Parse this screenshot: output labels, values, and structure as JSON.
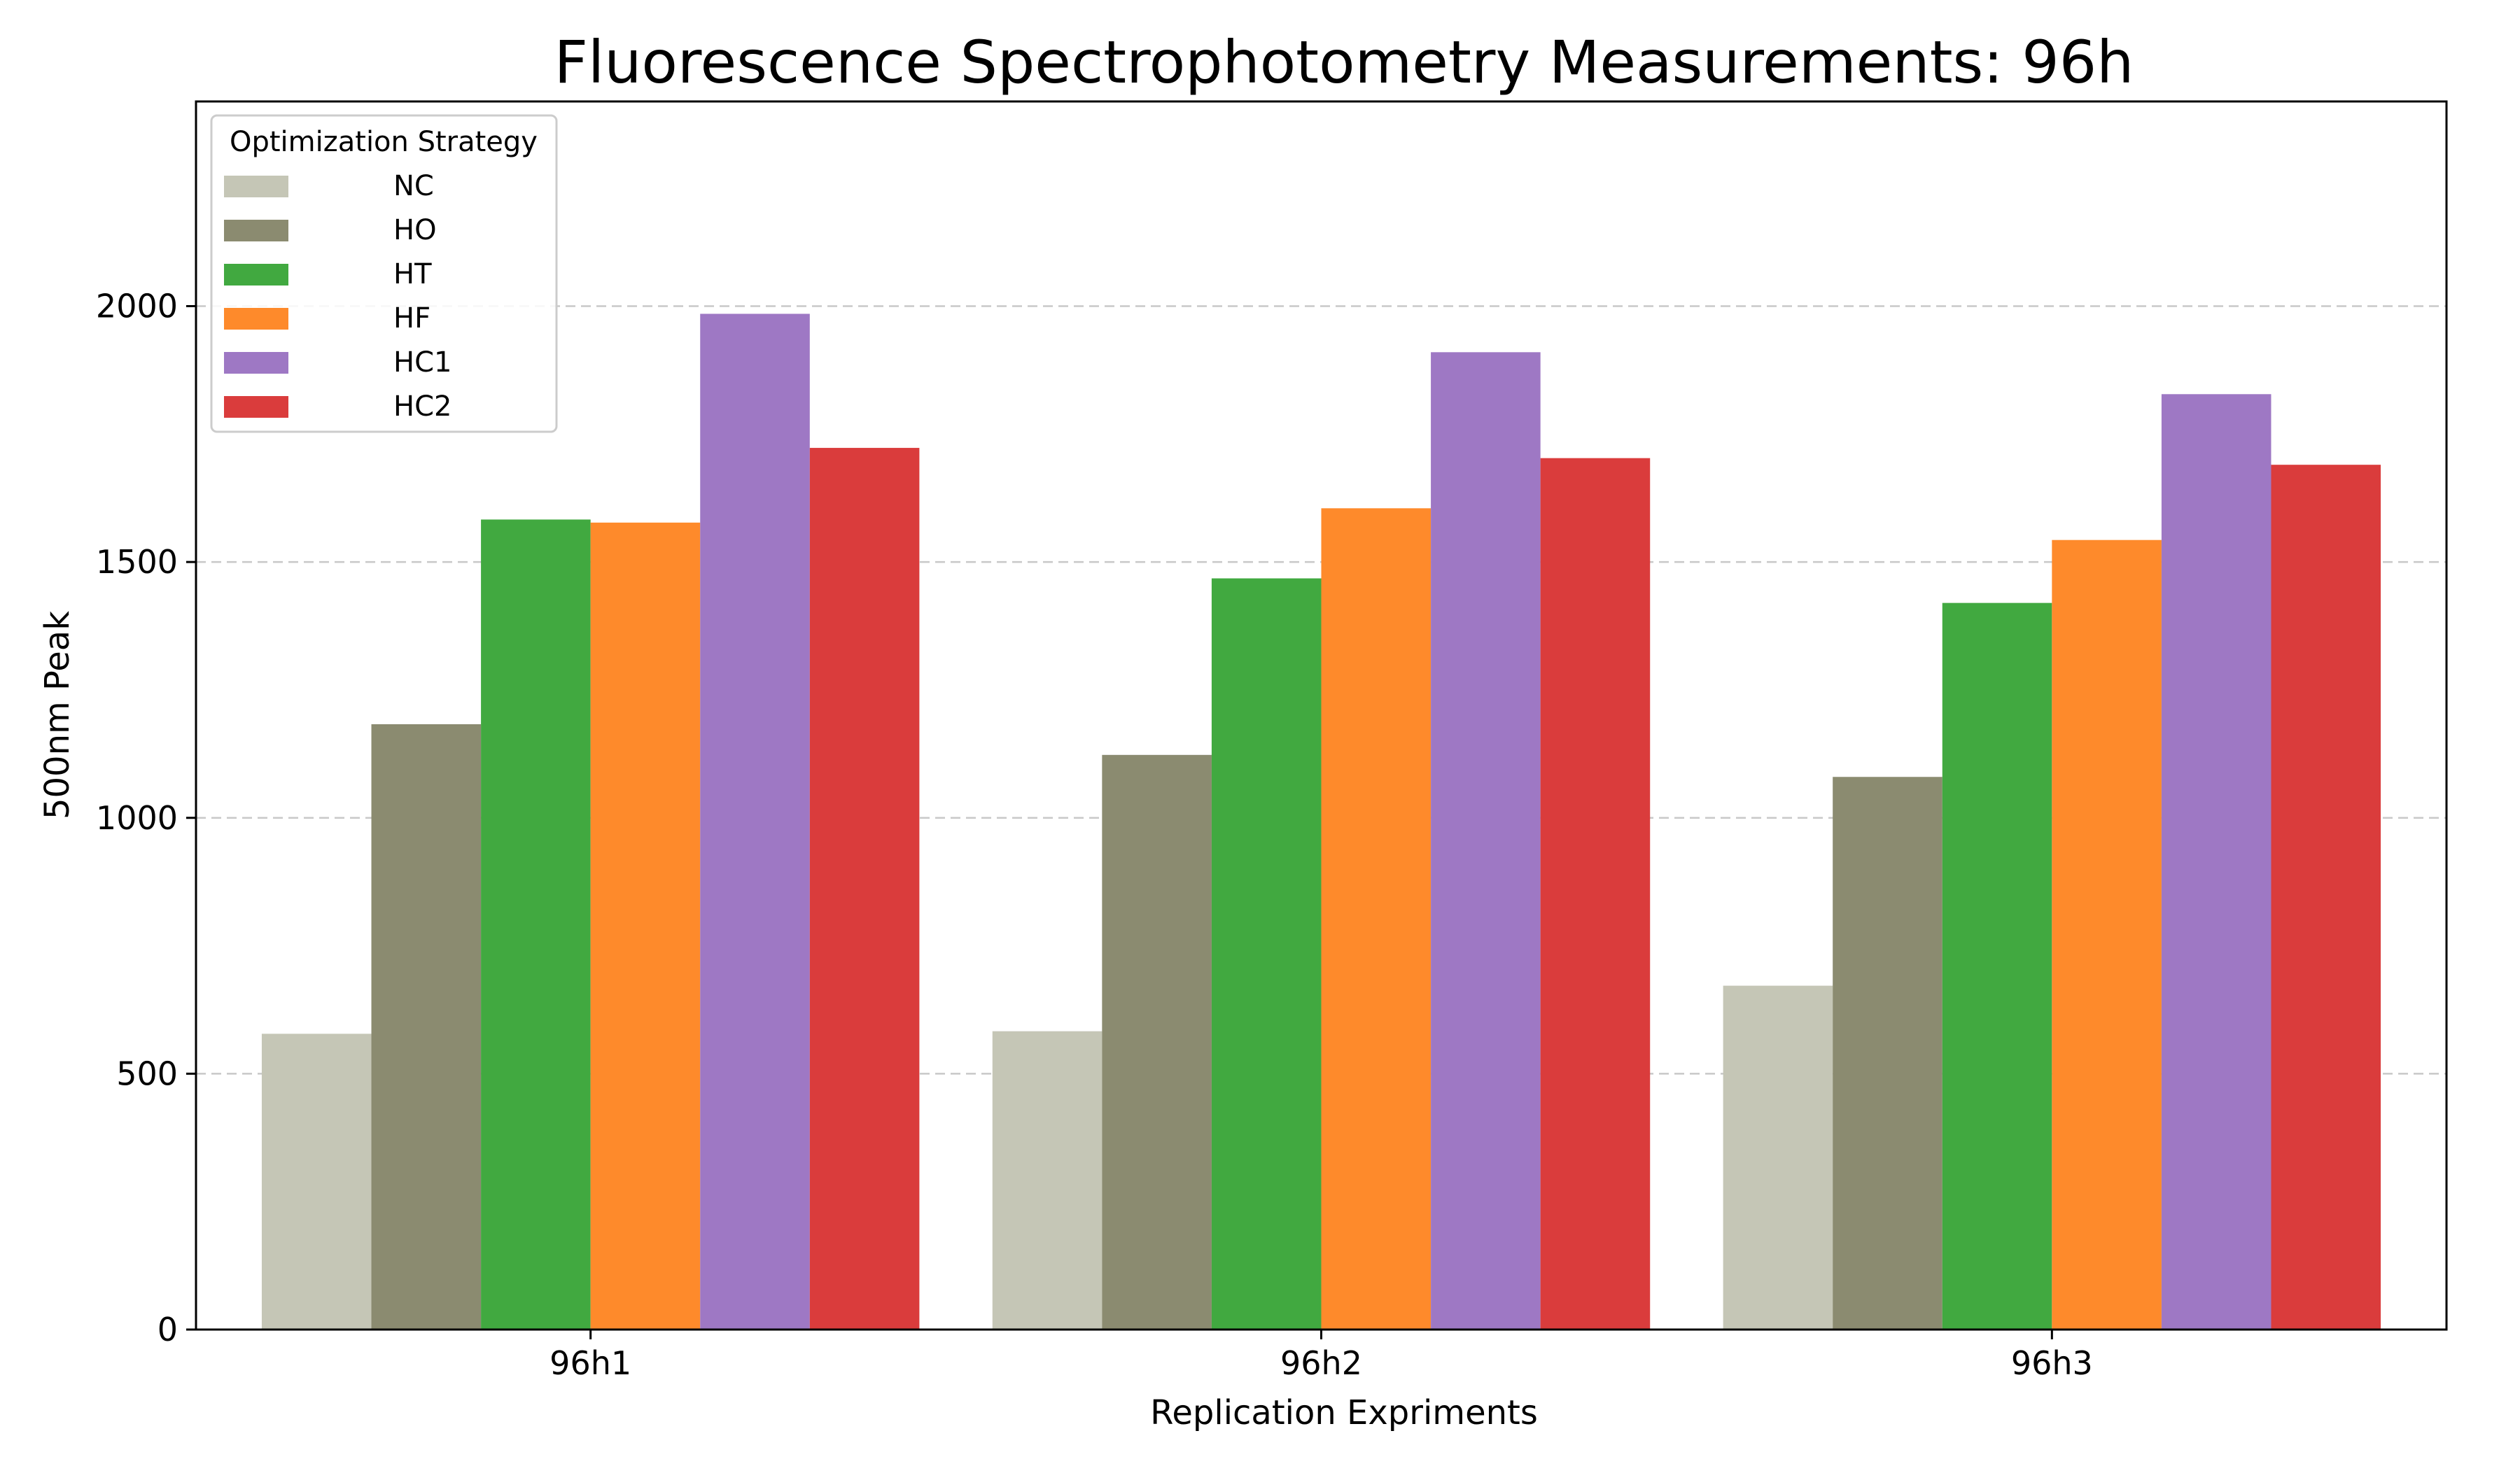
{
  "chart_data": {
    "type": "bar",
    "title": "Fluorescence Spectrophotometry Measurements: 96h",
    "xlabel": "Replication Expriments",
    "ylabel": "500nm Peak",
    "categories": [
      "96h1",
      "96h2",
      "96h3"
    ],
    "ylim": [
      0,
      2400
    ],
    "yticks": [
      0,
      500,
      1000,
      1500,
      2000
    ],
    "grid": "y-dashed",
    "legend": {
      "title": "Optimization Strategy",
      "placement": "top-left"
    },
    "series": [
      {
        "name": "NC",
        "color": "#c5c6b6",
        "values": [
          578,
          583,
          672
        ]
      },
      {
        "name": "HO",
        "color": "#8b8b70",
        "values": [
          1183,
          1123,
          1080
        ]
      },
      {
        "name": "HT",
        "color": "#41a940",
        "values": [
          1583,
          1468,
          1420
        ]
      },
      {
        "name": "HF",
        "color": "#fe8a2b",
        "values": [
          1577,
          1605,
          1543
        ]
      },
      {
        "name": "HC1",
        "color": "#9e78c4",
        "values": [
          1985,
          1910,
          1828
        ]
      },
      {
        "name": "HC2",
        "color": "#da3c3c",
        "values": [
          1723,
          1703,
          1690
        ]
      }
    ]
  }
}
